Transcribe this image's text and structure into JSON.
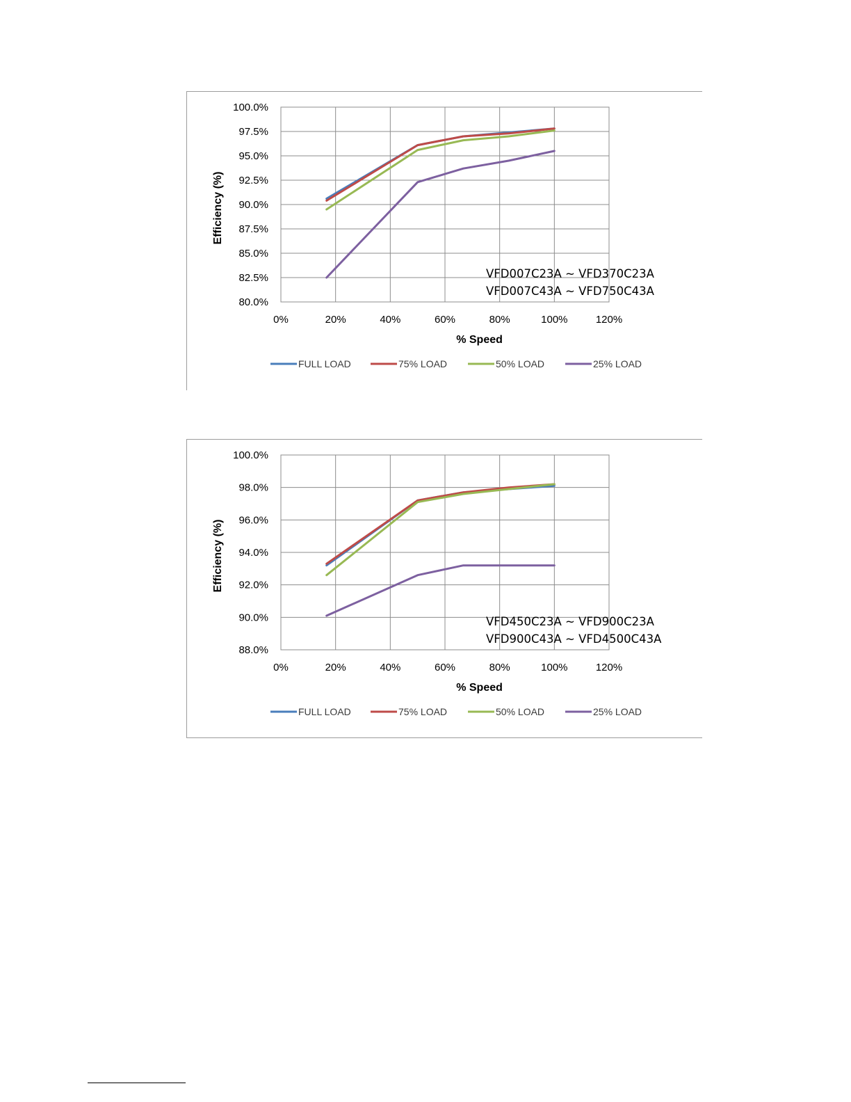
{
  "colors": {
    "full_load": "#4a7ebb",
    "load_75": "#be4b48",
    "load_50": "#98b954",
    "load_25": "#7d60a0",
    "grid": "#8c8c8c"
  },
  "chart_data": [
    {
      "type": "line",
      "xlabel": "% Speed",
      "ylabel": "Efficiency (%)",
      "xlim": [
        0,
        120
      ],
      "ylim": [
        80,
        100
      ],
      "x_ticks": [
        "0%",
        "20%",
        "40%",
        "60%",
        "80%",
        "100%",
        "120%"
      ],
      "y_ticks": [
        "80.0%",
        "82.5%",
        "85.0%",
        "87.5%",
        "90.0%",
        "92.5%",
        "95.0%",
        "97.5%",
        "100.0%"
      ],
      "grid": true,
      "legend_position": "bottom",
      "annotation": [
        "VFD007C23A ~ VFD370C23A",
        "VFD007C43A ~ VFD750C43A"
      ],
      "x": [
        16.7,
        50,
        66.7,
        83.3,
        100
      ],
      "series": [
        {
          "name": "FULL LOAD",
          "values": [
            90.6,
            96.1,
            97.0,
            97.4,
            97.8
          ]
        },
        {
          "name": "75% LOAD",
          "values": [
            90.4,
            96.1,
            97.0,
            97.3,
            97.8
          ]
        },
        {
          "name": "50% LOAD",
          "values": [
            89.5,
            95.6,
            96.6,
            97.0,
            97.6
          ]
        },
        {
          "name": "25% LOAD",
          "values": [
            82.5,
            92.3,
            93.7,
            94.5,
            95.5
          ]
        }
      ]
    },
    {
      "type": "line",
      "xlabel": "% Speed",
      "ylabel": "Efficiency (%)",
      "xlim": [
        0,
        120
      ],
      "ylim": [
        88,
        100
      ],
      "x_ticks": [
        "0%",
        "20%",
        "40%",
        "60%",
        "80%",
        "100%",
        "120%"
      ],
      "y_ticks": [
        "88.0%",
        "90.0%",
        "92.0%",
        "94.0%",
        "96.0%",
        "98.0%",
        "100.0%"
      ],
      "grid": true,
      "legend_position": "bottom",
      "annotation": [
        "VFD450C23A ~ VFD900C23A",
        "VFD900C43A ~ VFD4500C43A"
      ],
      "x": [
        16.7,
        50,
        66.7,
        83.3,
        100
      ],
      "series": [
        {
          "name": "FULL LOAD",
          "values": [
            93.2,
            97.2,
            97.7,
            97.9,
            98.1
          ]
        },
        {
          "name": "75% LOAD",
          "values": [
            93.3,
            97.2,
            97.7,
            98.0,
            98.2
          ]
        },
        {
          "name": "50% LOAD",
          "values": [
            92.6,
            97.1,
            97.6,
            97.9,
            98.2
          ]
        },
        {
          "name": "25% LOAD",
          "values": [
            90.1,
            92.6,
            93.2,
            93.2,
            93.2
          ]
        }
      ]
    }
  ]
}
